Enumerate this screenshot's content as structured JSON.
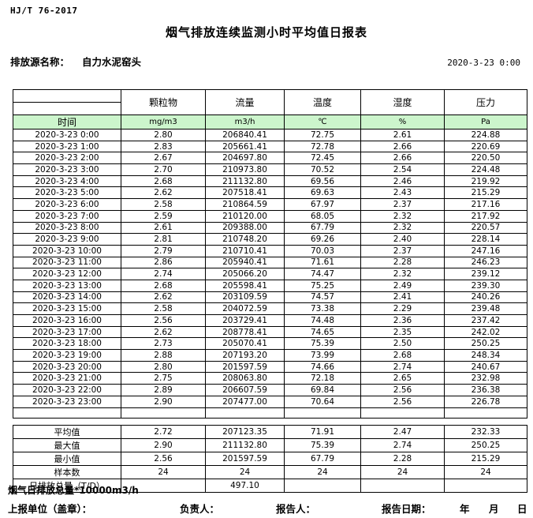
{
  "header": {
    "standard_code": "HJ/T  76-2017",
    "title": "烟气排放连续监测小时平均值日报表",
    "source_label": "排放源名称：",
    "source_name": "自力水泥窑头",
    "report_datetime": "2020-3-23  0:00"
  },
  "table": {
    "time_header": "时间",
    "columns": [
      {
        "label": "颗粒物",
        "unit": "mg/m3"
      },
      {
        "label": "流量",
        "unit": "m3/h"
      },
      {
        "label": "温度",
        "unit": "℃"
      },
      {
        "label": "湿度",
        "unit": "%"
      },
      {
        "label": "压力",
        "unit": "Pa"
      }
    ],
    "rows": [
      {
        "time": "2020-3-23 0:00",
        "values": [
          "2.80",
          "206840.41",
          "72.75",
          "2.61",
          "224.88"
        ]
      },
      {
        "time": "2020-3-23 1:00",
        "values": [
          "2.83",
          "205661.41",
          "72.78",
          "2.66",
          "220.69"
        ]
      },
      {
        "time": "2020-3-23 2:00",
        "values": [
          "2.67",
          "204697.80",
          "72.45",
          "2.66",
          "220.50"
        ]
      },
      {
        "time": "2020-3-23 3:00",
        "values": [
          "2.70",
          "210973.80",
          "70.52",
          "2.54",
          "224.48"
        ]
      },
      {
        "time": "2020-3-23 4:00",
        "values": [
          "2.68",
          "211132.80",
          "69.56",
          "2.46",
          "219.92"
        ]
      },
      {
        "time": "2020-3-23 5:00",
        "values": [
          "2.62",
          "207518.41",
          "69.63",
          "2.43",
          "215.29"
        ]
      },
      {
        "time": "2020-3-23 6:00",
        "values": [
          "2.58",
          "210864.59",
          "67.97",
          "2.37",
          "217.16"
        ]
      },
      {
        "time": "2020-3-23 7:00",
        "values": [
          "2.59",
          "210120.00",
          "68.05",
          "2.32",
          "217.92"
        ]
      },
      {
        "time": "2020-3-23 8:00",
        "values": [
          "2.61",
          "209388.00",
          "67.79",
          "2.32",
          "220.57"
        ]
      },
      {
        "time": "2020-3-23 9:00",
        "values": [
          "2.81",
          "210748.20",
          "69.26",
          "2.40",
          "228.14"
        ]
      },
      {
        "time": "2020-3-23 10:00",
        "values": [
          "2.79",
          "210710.41",
          "70.03",
          "2.37",
          "247.16"
        ]
      },
      {
        "time": "2020-3-23 11:00",
        "values": [
          "2.86",
          "205940.41",
          "71.61",
          "2.28",
          "246.23"
        ]
      },
      {
        "time": "2020-3-23 12:00",
        "values": [
          "2.74",
          "205066.20",
          "74.47",
          "2.32",
          "239.12"
        ]
      },
      {
        "time": "2020-3-23 13:00",
        "values": [
          "2.68",
          "205598.41",
          "75.25",
          "2.49",
          "239.30"
        ]
      },
      {
        "time": "2020-3-23 14:00",
        "values": [
          "2.62",
          "203109.59",
          "74.57",
          "2.41",
          "240.26"
        ]
      },
      {
        "time": "2020-3-23 15:00",
        "values": [
          "2.58",
          "204072.59",
          "73.38",
          "2.29",
          "239.48"
        ]
      },
      {
        "time": "2020-3-23 16:00",
        "values": [
          "2.56",
          "203729.41",
          "74.48",
          "2.36",
          "237.42"
        ]
      },
      {
        "time": "2020-3-23 17:00",
        "values": [
          "2.62",
          "208778.41",
          "74.65",
          "2.35",
          "242.02"
        ]
      },
      {
        "time": "2020-3-23 18:00",
        "values": [
          "2.73",
          "205070.41",
          "75.39",
          "2.50",
          "250.25"
        ]
      },
      {
        "time": "2020-3-23 19:00",
        "values": [
          "2.88",
          "207193.20",
          "73.99",
          "2.68",
          "248.34"
        ]
      },
      {
        "time": "2020-3-23 20:00",
        "values": [
          "2.80",
          "201597.59",
          "74.66",
          "2.74",
          "240.67"
        ]
      },
      {
        "time": "2020-3-23 21:00",
        "values": [
          "2.75",
          "208063.80",
          "72.18",
          "2.65",
          "232.98"
        ]
      },
      {
        "time": "2020-3-23 22:00",
        "values": [
          "2.89",
          "206607.59",
          "69.84",
          "2.56",
          "236.38"
        ]
      },
      {
        "time": "2020-3-23 23:00",
        "values": [
          "2.90",
          "207477.00",
          "70.64",
          "2.56",
          "226.78"
        ]
      }
    ],
    "summary": [
      {
        "label": "平均值",
        "values": [
          "2.72",
          "207123.35",
          "71.91",
          "2.47",
          "232.33"
        ]
      },
      {
        "label": "最大值",
        "values": [
          "2.90",
          "211132.80",
          "75.39",
          "2.74",
          "250.25"
        ]
      },
      {
        "label": "最小值",
        "values": [
          "2.56",
          "201597.59",
          "67.79",
          "2.28",
          "215.29"
        ]
      },
      {
        "label": "样本数",
        "values": [
          "24",
          "24",
          "24",
          "24",
          "24"
        ]
      },
      {
        "label": "日排放总量（T/D）",
        "values": [
          "",
          "497.10",
          "",
          "",
          ""
        ]
      }
    ]
  },
  "footer": {
    "note": "烟气日排放总量*10000m3/h",
    "report_unit_label": "上报单位（盖章）：",
    "responsible_label": "负责人：",
    "reporter_label": "报告人：",
    "report_date_label": "报告日期：",
    "year_label": "年",
    "month_label": "月",
    "day_label": "日"
  },
  "colors": {
    "unit_row_bg": "#ccf5cc",
    "border": "#000000"
  }
}
